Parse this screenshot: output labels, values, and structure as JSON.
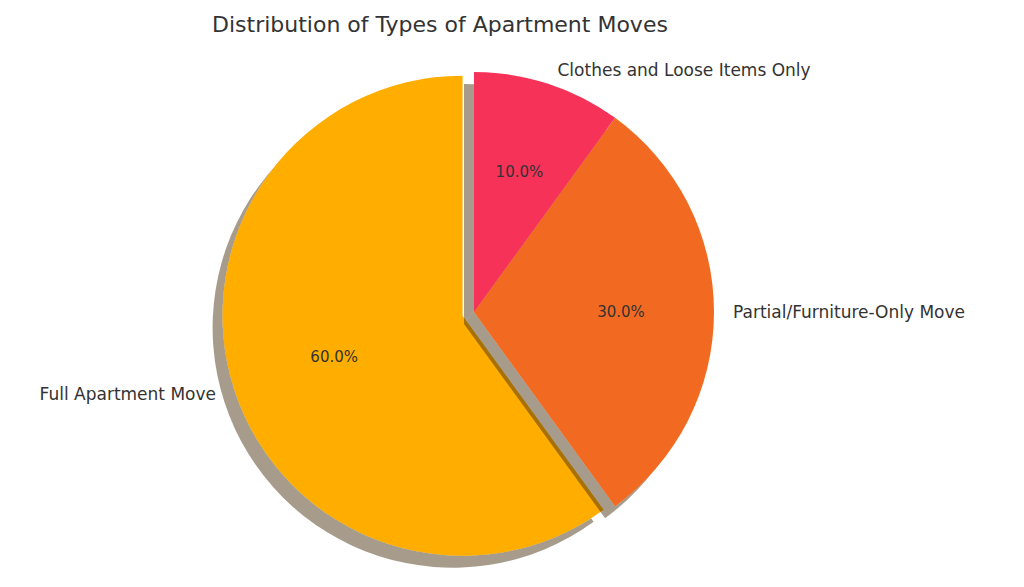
{
  "chart_data": {
    "type": "pie",
    "title": "Distribution of Types of Apartment Moves",
    "categories": [
      "Full Apartment Move",
      "Partial/Furniture-Only Move",
      "Clothes and Loose Items Only"
    ],
    "values": [
      60,
      30,
      10
    ],
    "value_labels": [
      "60.0%",
      "30.0%",
      "10.0%"
    ],
    "colors": [
      "#ffae00",
      "#f26b21",
      "#f73359"
    ],
    "data_labels": true
  }
}
